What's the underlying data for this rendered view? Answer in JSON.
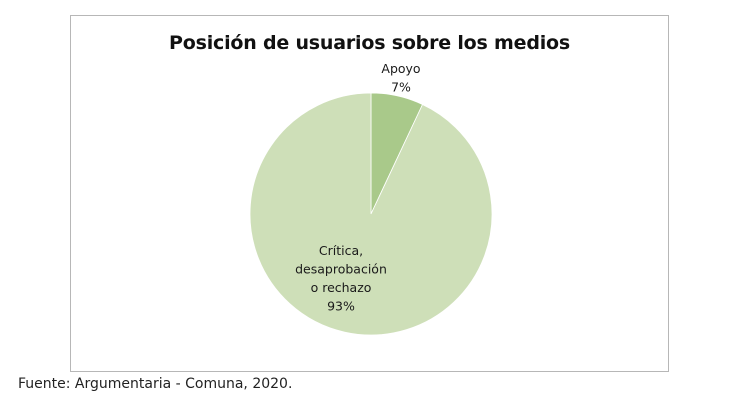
{
  "chart_data": {
    "type": "pie",
    "title": "Posición de usuarios sobre los medios",
    "slices": [
      {
        "label_lines": [
          "Apoyo"
        ],
        "value": 7,
        "value_label": "7%",
        "color": "#a9c98a"
      },
      {
        "label_lines": [
          "Crítica,",
          "desaprobación",
          "o rechazo"
        ],
        "value": 93,
        "value_label": "93%",
        "color": "#cedfb8"
      }
    ],
    "start_angle_deg": 0,
    "direction": "clockwise",
    "legend": "none"
  },
  "source_note": "Fuente: Argumentaria - Comuna, 2020."
}
